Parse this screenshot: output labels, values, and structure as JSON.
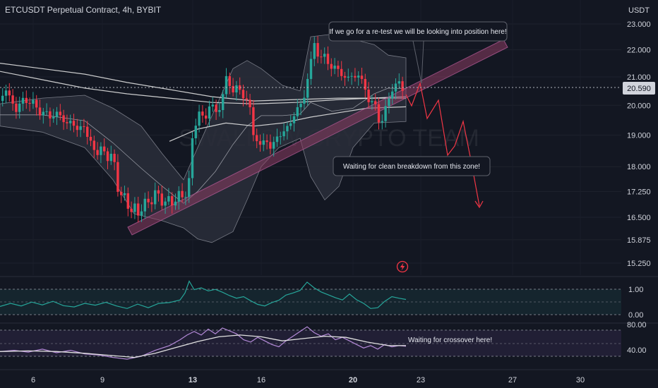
{
  "chart_title": "ETCUSDT Perpetual Contract, 4h, BYBIT",
  "currency": "USDT",
  "watermark": "SWALLOW CRYPTO TEAM",
  "colors": {
    "background": "#131722",
    "up": "#26a69a",
    "down": "#f23645",
    "trendline": "#8c3d63",
    "band_fill": "#2a2e39",
    "forecast": "#f23645",
    "ma": "#e0e0e0",
    "indicator1": "#26a69a",
    "indicator2": "#b48ad8",
    "bolt": "#f23645"
  },
  "icons": {
    "bolt": "lightning-bolt-icon"
  },
  "chart_data": [
    {
      "type": "candlestick",
      "yaxis": {
        "scale": "log",
        "ticks": [
          "23.000",
          "22.000",
          "21.000",
          "20.000",
          "19.000",
          "18.000",
          "17.250",
          "16.500",
          "15.875",
          "15.250"
        ]
      },
      "xaxis": {
        "ticks": [
          "6",
          "9",
          "13",
          "16",
          "20",
          "23",
          "27",
          "30"
        ]
      },
      "last_price": "20.590",
      "annotations": [
        "If we go for a re-test we will be looking into position here!",
        "Waiting for clean breakdown from this zone!"
      ],
      "series": [
        {
          "points": [
            [
              0,
              20.15
            ],
            [
              8,
              20.55
            ],
            [
              16,
              20.25
            ],
            [
              24,
              19.75
            ],
            [
              32,
              20.3
            ],
            [
              40,
              20.0
            ],
            [
              48,
              20.2
            ],
            [
              56,
              19.65
            ],
            [
              64,
              19.85
            ],
            [
              72,
              19.55
            ],
            [
              80,
              19.75
            ],
            [
              88,
              19.6
            ],
            [
              96,
              19.35
            ],
            [
              104,
              19.45
            ],
            [
              112,
              19.1
            ],
            [
              120,
              19.35
            ],
            [
              128,
              18.75
            ],
            [
              136,
              18.45
            ],
            [
              144,
              18.55
            ],
            [
              152,
              18.3
            ],
            [
              160,
              18.4
            ],
            [
              168,
              17.3
            ],
            [
              176,
              17.1
            ],
            [
              184,
              16.7
            ],
            [
              190,
              16.85
            ],
            [
              196,
              16.5
            ],
            [
              204,
              17.0
            ],
            [
              212,
              16.8
            ],
            [
              220,
              17.3
            ],
            [
              228,
              16.9
            ],
            [
              236,
              17.05
            ],
            [
              244,
              16.85
            ],
            [
              252,
              17.2
            ],
            [
              260,
              17.0
            ],
            [
              268,
              17.5
            ],
            [
              274,
              19.0
            ],
            [
              282,
              19.85
            ],
            [
              290,
              19.4
            ],
            [
              298,
              20.1
            ],
            [
              306,
              19.75
            ],
            [
              314,
              20.0
            ],
            [
              322,
              21.1
            ],
            [
              330,
              20.4
            ],
            [
              338,
              20.75
            ],
            [
              346,
              20.2
            ],
            [
              354,
              20.1
            ],
            [
              360,
              18.95
            ],
            [
              368,
              18.65
            ],
            [
              376,
              18.9
            ],
            [
              384,
              18.55
            ],
            [
              392,
              18.95
            ],
            [
              400,
              19.0
            ],
            [
              408,
              19.3
            ],
            [
              416,
              19.55
            ],
            [
              424,
              20.0
            ],
            [
              432,
              20.3
            ],
            [
              440,
              21.3
            ],
            [
              444,
              22.6
            ],
            [
              452,
              21.5
            ],
            [
              460,
              22.0
            ],
            [
              468,
              21.1
            ],
            [
              476,
              21.6
            ],
            [
              484,
              20.9
            ],
            [
              492,
              21.15
            ],
            [
              500,
              20.85
            ],
            [
              508,
              21.2
            ],
            [
              516,
              20.6
            ],
            [
              524,
              20.2
            ],
            [
              532,
              19.95
            ],
            [
              540,
              19.35
            ],
            [
              548,
              19.9
            ],
            [
              554,
              20.6
            ],
            [
              560,
              20.55
            ],
            [
              566,
              20.85
            ],
            [
              572,
              20.6
            ]
          ]
        }
      ]
    },
    {
      "type": "line",
      "name": "oscillator-1",
      "yaxis": {
        "ticks": [
          "1.00",
          "0.00"
        ],
        "ylim": [
          -0.2,
          1.3
        ]
      },
      "series": [
        {
          "points": [
            [
              0,
              0.28
            ],
            [
              15,
              0.4
            ],
            [
              30,
              0.3
            ],
            [
              45,
              0.45
            ],
            [
              60,
              0.34
            ],
            [
              75,
              0.48
            ],
            [
              90,
              0.31
            ],
            [
              105,
              0.26
            ],
            [
              120,
              0.4
            ],
            [
              135,
              0.33
            ],
            [
              150,
              0.44
            ],
            [
              165,
              0.3
            ],
            [
              180,
              0.2
            ],
            [
              195,
              0.37
            ],
            [
              210,
              0.23
            ],
            [
              225,
              0.4
            ],
            [
              240,
              0.43
            ],
            [
              255,
              0.53
            ],
            [
              262,
              0.8
            ],
            [
              268,
              1.26
            ],
            [
              275,
              0.93
            ],
            [
              285,
              1.0
            ],
            [
              295,
              0.88
            ],
            [
              305,
              0.94
            ],
            [
              315,
              0.83
            ],
            [
              325,
              0.7
            ],
            [
              335,
              0.6
            ],
            [
              345,
              0.66
            ],
            [
              355,
              0.5
            ],
            [
              365,
              0.36
            ],
            [
              375,
              0.3
            ],
            [
              385,
              0.43
            ],
            [
              395,
              0.52
            ],
            [
              405,
              0.72
            ],
            [
              415,
              0.8
            ],
            [
              425,
              0.9
            ],
            [
              435,
              1.22
            ],
            [
              445,
              1.0
            ],
            [
              455,
              0.84
            ],
            [
              465,
              0.73
            ],
            [
              475,
              0.62
            ],
            [
              485,
              0.53
            ],
            [
              495,
              0.76
            ],
            [
              505,
              0.54
            ],
            [
              515,
              0.4
            ],
            [
              525,
              0.2
            ],
            [
              535,
              0.23
            ],
            [
              545,
              0.48
            ],
            [
              555,
              0.66
            ],
            [
              565,
              0.6
            ],
            [
              575,
              0.55
            ]
          ]
        }
      ]
    },
    {
      "type": "line",
      "name": "oscillator-2",
      "yaxis": {
        "ticks": [
          "80.00",
          "40.00"
        ],
        "ylim": [
          20,
          87
        ]
      },
      "series": [
        {
          "points": [
            [
              0,
              40
            ],
            [
              20,
              42
            ],
            [
              40,
              39
            ],
            [
              60,
              44
            ],
            [
              80,
              38
            ],
            [
              100,
              42
            ],
            [
              120,
              36
            ],
            [
              140,
              34
            ],
            [
              160,
              30
            ],
            [
              180,
              27
            ],
            [
              200,
              32
            ],
            [
              220,
              42
            ],
            [
              240,
              50
            ],
            [
              255,
              60
            ],
            [
              265,
              68
            ],
            [
              275,
              74
            ],
            [
              285,
              68
            ],
            [
              295,
              78
            ],
            [
              305,
              70
            ],
            [
              315,
              80
            ],
            [
              325,
              75
            ],
            [
              335,
              70
            ],
            [
              345,
              60
            ],
            [
              355,
              56
            ],
            [
              365,
              64
            ],
            [
              375,
              58
            ],
            [
              385,
              52
            ],
            [
              395,
              48
            ],
            [
              405,
              58
            ],
            [
              415,
              66
            ],
            [
              425,
              74
            ],
            [
              435,
              82
            ],
            [
              445,
              72
            ],
            [
              455,
              66
            ],
            [
              465,
              70
            ],
            [
              475,
              60
            ],
            [
              485,
              64
            ],
            [
              495,
              58
            ],
            [
              505,
              52
            ],
            [
              515,
              46
            ],
            [
              525,
              50
            ],
            [
              535,
              44
            ],
            [
              545,
              52
            ],
            [
              555,
              48
            ],
            [
              565,
              50
            ],
            [
              575,
              49
            ]
          ]
        },
        {
          "points": [
            [
              0,
              40
            ],
            [
              40,
              41
            ],
            [
              80,
              40
            ],
            [
              120,
              37
            ],
            [
              160,
              33
            ],
            [
              190,
              30
            ],
            [
              220,
              37
            ],
            [
              250,
              47
            ],
            [
              280,
              57
            ],
            [
              310,
              65
            ],
            [
              340,
              68
            ],
            [
              370,
              65
            ],
            [
              400,
              58
            ],
            [
              430,
              62
            ],
            [
              460,
              66
            ],
            [
              490,
              64
            ],
            [
              520,
              56
            ],
            [
              550,
              50
            ],
            [
              575,
              50
            ]
          ]
        }
      ],
      "annotation": "Waiting for crossover here!"
    }
  ]
}
